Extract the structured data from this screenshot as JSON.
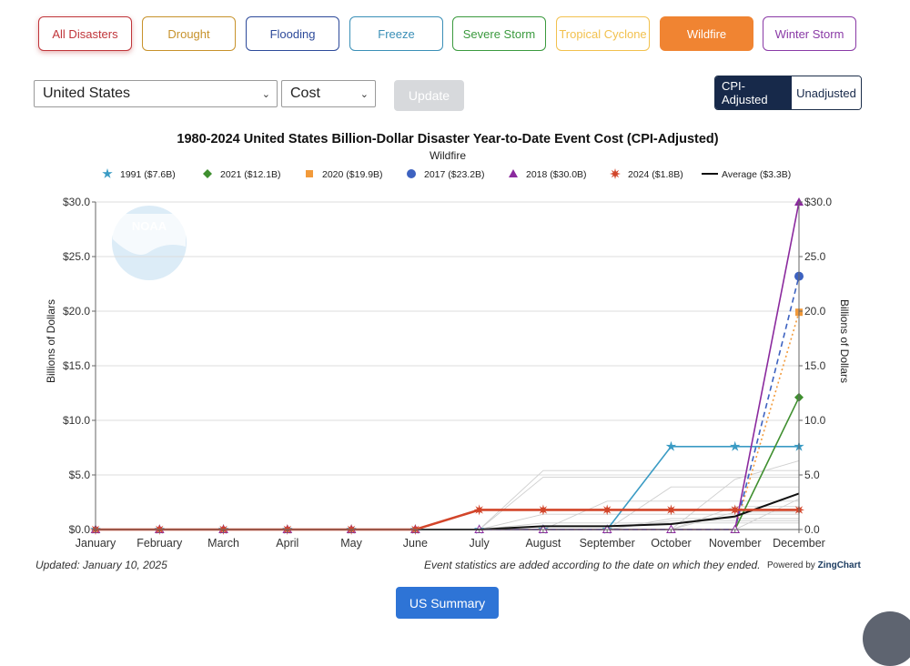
{
  "tabs": [
    {
      "label": "All Disasters",
      "color": "#c0353a"
    },
    {
      "label": "Drought",
      "color": "#c7922b"
    },
    {
      "label": "Flooding",
      "color": "#2d4a9a"
    },
    {
      "label": "Freeze",
      "color": "#3a8fb7"
    },
    {
      "label": "Severe Storm",
      "color": "#3b9a3e"
    },
    {
      "label": "Tropical Cyclone",
      "color": "#f2c14e"
    },
    {
      "label": "Wildfire",
      "color": "#f08432",
      "active": true
    },
    {
      "label": "Winter Storm",
      "color": "#8a3aa6"
    }
  ],
  "controls": {
    "region": "United States",
    "metric": "Cost",
    "update_label": "Update",
    "cpi_label": "CPI-Adjusted",
    "unadjusted_label": "Unadjusted"
  },
  "footer": {
    "updated": "Updated: January 10, 2025",
    "note": "Event statistics are added according to the date on which they ended.",
    "powered_prefix": "Powered by",
    "powered_brand": "ZingChart",
    "summary_label": "US Summary"
  },
  "chart_data": {
    "type": "line",
    "title": "1980-2024 United States Billion-Dollar Disaster Year-to-Date Event Cost (CPI-Adjusted)",
    "subtitle": "Wildfire",
    "ylabel": "Billions of Dollars",
    "ylabel_right": "Billions of Dollars",
    "ylim": [
      0,
      30
    ],
    "yticks": [
      0,
      5,
      10,
      15,
      20,
      25,
      30
    ],
    "ytick_labels": [
      "$0.0",
      "$5.0",
      "$10.0",
      "$15.0",
      "$20.0",
      "$25.0",
      "$30.0"
    ],
    "ytick_labels_right": [
      "0.0",
      "5.0",
      "10.0",
      "15.0",
      "20.0",
      "25.0",
      "$30.0"
    ],
    "categories": [
      "January",
      "February",
      "March",
      "April",
      "May",
      "June",
      "July",
      "August",
      "September",
      "October",
      "November",
      "December"
    ],
    "legend_position": "top",
    "watermark": "NOAA",
    "series": [
      {
        "name": "1991 ($7.6B)",
        "color": "#3a9bc4",
        "marker": "star",
        "dash": "solid",
        "values": [
          0,
          0,
          0,
          0,
          0,
          0,
          0,
          0,
          0,
          7.6,
          7.6,
          7.6
        ]
      },
      {
        "name": "2021 ($12.1B)",
        "color": "#3f8f2f",
        "marker": "diamond",
        "dash": "solid",
        "values": [
          0,
          0,
          0,
          0,
          0,
          0,
          0,
          0,
          0,
          0,
          0,
          12.1
        ]
      },
      {
        "name": "2020 ($19.9B)",
        "color": "#f29a3a",
        "marker": "square",
        "dash": "dotted",
        "values": [
          0,
          0,
          0,
          0,
          0,
          0,
          0,
          0,
          0,
          0,
          0,
          19.9
        ]
      },
      {
        "name": "2017 ($23.2B)",
        "color": "#3d62c0",
        "marker": "circle",
        "dash": "dashed",
        "values": [
          0,
          0,
          0,
          0,
          0,
          0,
          0,
          0,
          0,
          0,
          0,
          23.2
        ]
      },
      {
        "name": "2018 ($30.0B)",
        "color": "#8b2a9e",
        "marker": "triangle",
        "dash": "solid",
        "values": [
          0,
          0,
          0,
          0,
          0,
          0,
          0,
          0,
          0,
          0,
          0,
          30.0
        ]
      },
      {
        "name": "2024 ($1.8B)",
        "color": "#d2452a",
        "marker": "burst",
        "dash": "solid",
        "values": [
          0,
          0,
          0,
          0,
          0,
          0,
          1.8,
          1.8,
          1.8,
          1.8,
          1.8,
          1.8
        ]
      },
      {
        "name": "Average ($3.3B)",
        "color": "#111111",
        "marker": "none",
        "dash": "solid",
        "values": [
          0,
          0,
          0,
          0,
          0,
          0,
          0,
          0.3,
          0.3,
          0.5,
          1.2,
          3.3
        ]
      }
    ],
    "background_series": [
      [
        0,
        0,
        0,
        0,
        0,
        0,
        0,
        5.4,
        5.4,
        5.4,
        5.4,
        5.4
      ],
      [
        0,
        0,
        0,
        0,
        0,
        0,
        0,
        4.8,
        4.8,
        4.8,
        4.8,
        4.8
      ],
      [
        0,
        0,
        0,
        0,
        0,
        0,
        0,
        0,
        0,
        0,
        4.6,
        6.3
      ],
      [
        0,
        0,
        0,
        0,
        0,
        0,
        0,
        0,
        0,
        3.9,
        3.9,
        3.9
      ],
      [
        0,
        0,
        0,
        0,
        0,
        0,
        0,
        0,
        2.6,
        2.6,
        2.6,
        2.6
      ],
      [
        0,
        0,
        0,
        0,
        0,
        0,
        0,
        0,
        0,
        0,
        2.1,
        2.1
      ],
      [
        0,
        0,
        0,
        0,
        0,
        0,
        0,
        1.4,
        1.4,
        1.4,
        1.4,
        1.4
      ],
      [
        0,
        0,
        0,
        0,
        0,
        0,
        0,
        0,
        0,
        1.0,
        1.0,
        1.0
      ],
      [
        0,
        0,
        0,
        0,
        0,
        0,
        0,
        0,
        0,
        0,
        0,
        2.8
      ],
      [
        0,
        0,
        0,
        0,
        0,
        0,
        0,
        0.6,
        0.6,
        0.6,
        0.6,
        0.6
      ],
      [
        0,
        0,
        0,
        0,
        0,
        0,
        0,
        0,
        0,
        0,
        1.6,
        1.6
      ],
      [
        0,
        0,
        0,
        0,
        0,
        0,
        0,
        0,
        0,
        0.8,
        0.8,
        0.8
      ]
    ]
  }
}
